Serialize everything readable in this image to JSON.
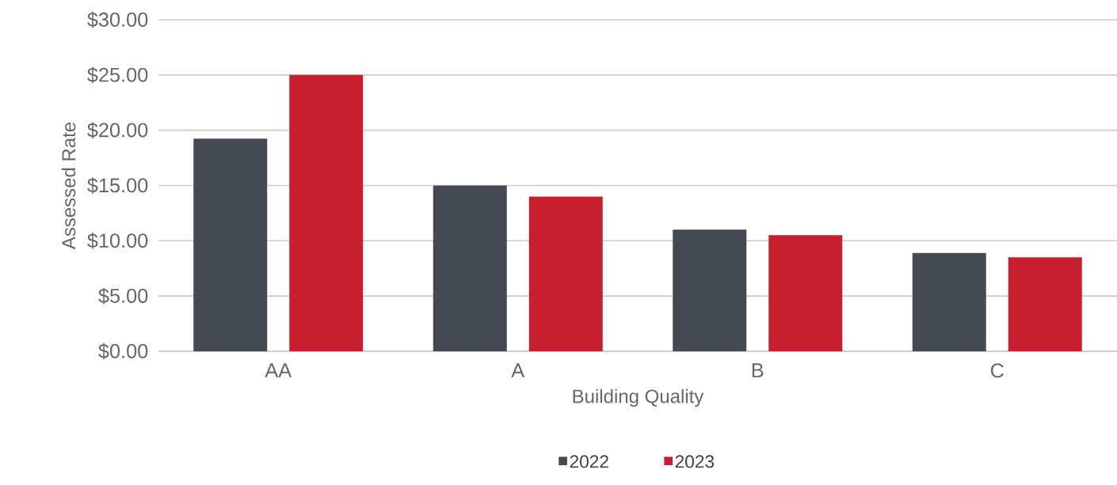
{
  "chart_data": {
    "type": "bar",
    "xlabel": "Building Quality",
    "ylabel": "Assessed Rate",
    "categories": [
      "AA",
      "A",
      "B",
      "C"
    ],
    "series": [
      {
        "name": "2022",
        "color": "#434a52",
        "values": [
          19.25,
          15,
          11,
          8.9
        ]
      },
      {
        "name": "2023",
        "color": "#c71f2f",
        "values": [
          25,
          14,
          10.5,
          8.5
        ]
      }
    ],
    "ylim": [
      0,
      30
    ],
    "yticks": [
      {
        "value": 0,
        "label": "$0.00"
      },
      {
        "value": 5,
        "label": "$5.00"
      },
      {
        "value": 10,
        "label": "$10.00"
      },
      {
        "value": 15,
        "label": "$15.00"
      },
      {
        "value": 20,
        "label": "$20.00"
      },
      {
        "value": 25,
        "label": "$25.00"
      },
      {
        "value": 30,
        "label": "$30.00"
      }
    ],
    "grid": "y",
    "legend": "bottom"
  }
}
